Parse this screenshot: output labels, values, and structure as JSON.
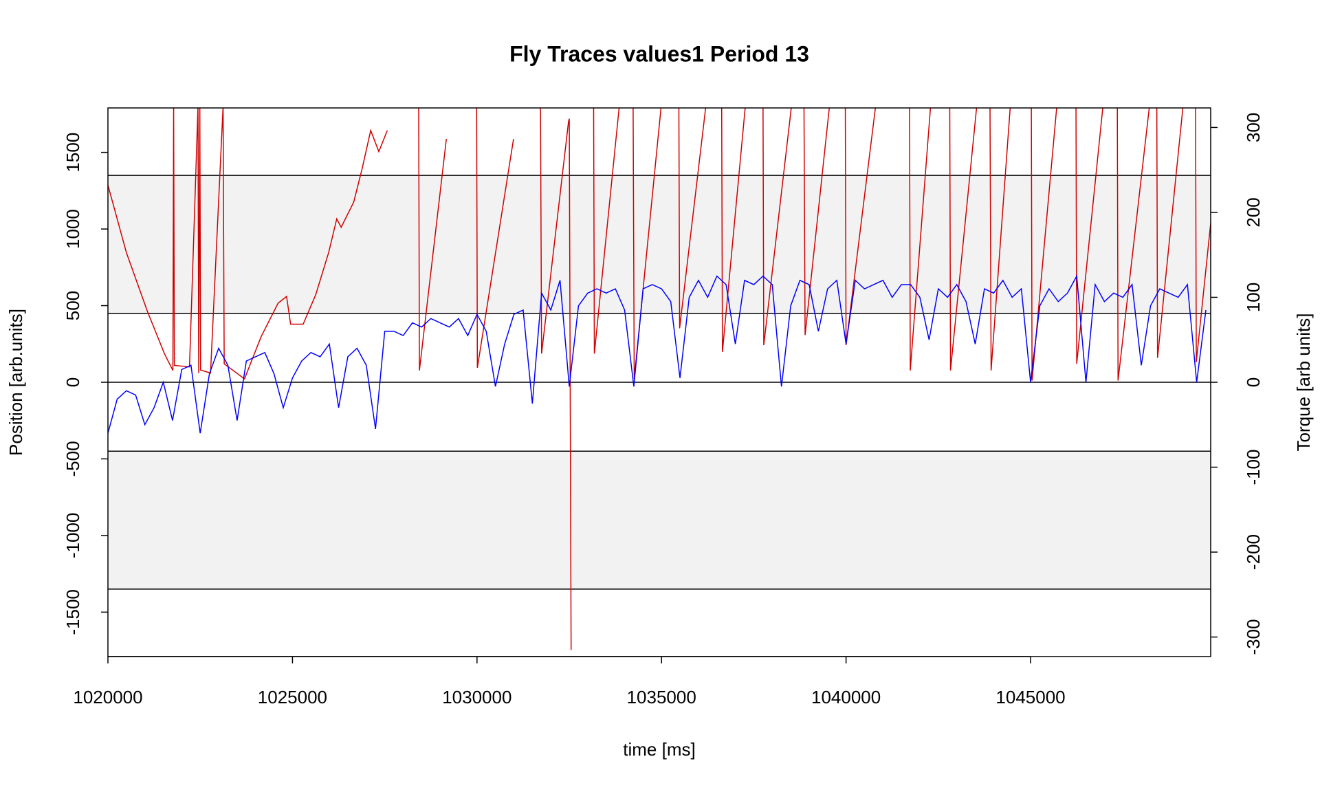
{
  "chart_data": {
    "type": "line",
    "title": "Fly Traces values1 Period 13",
    "xlabel": "time [ms]",
    "ylabel": "Position [arb.units]",
    "y2label": "Torque [arb units]",
    "xlim": [
      1020000,
      1049880
    ],
    "ylim": [
      -1790,
      1790
    ],
    "y2lim": [
      -323,
      323
    ],
    "xticks": [
      1020000,
      1025000,
      1030000,
      1035000,
      1040000,
      1045000
    ],
    "yticks": [
      -1500,
      -1000,
      -500,
      0,
      500,
      1000,
      1500
    ],
    "y2ticks": [
      -300,
      -200,
      -100,
      0,
      100,
      200,
      300
    ],
    "bands": [
      [
        450,
        1350
      ],
      [
        -1350,
        -450
      ]
    ],
    "band_color": "#f2f2f2",
    "hlines": [
      0,
      450,
      -450,
      1350,
      -1350
    ],
    "series": [
      {
        "color": "#d00000",
        "axis": "y",
        "x": [
          1020000,
          1020500,
          1021070,
          1021530,
          1021760,
          1021780,
          1021800,
          1022210,
          1022440,
          1022460,
          1022490,
          1022510,
          1022780,
          1023120,
          1023150,
          1023700,
          1024150,
          1024610,
          1024840,
          1024950,
          1025290,
          1025630,
          1025980,
          1026200,
          1026320,
          1026660,
          1026890,
          1027120,
          1027340,
          1027570,
          1027600,
          1028420,
          1028440,
          1029170,
          1029200,
          1029990,
          1030010,
          1030990,
          1031000,
          1031720,
          1031750,
          1032480,
          1032500,
          1032550,
          1032560,
          1033160,
          1033180,
          1033850,
          1033900,
          1034230,
          1034260,
          1034990,
          1035000,
          1035470,
          1035490,
          1036200,
          1036210,
          1036630,
          1036650,
          1037270,
          1037280,
          1037750,
          1037770,
          1038520,
          1038530,
          1038860,
          1038890,
          1039550,
          1039560,
          1039980,
          1040000,
          1040800,
          1040810,
          1041720,
          1041740,
          1042290,
          1042300,
          1042810,
          1042830,
          1043540,
          1043550,
          1043900,
          1043930,
          1044450,
          1044460,
          1045020,
          1045040,
          1045710,
          1045720,
          1046230,
          1046250,
          1046960,
          1046970,
          1047350,
          1047370,
          1048220,
          1048230,
          1048420,
          1048440,
          1049130,
          1049140,
          1049470,
          1049490,
          1049880
        ],
        "values": [
          1286,
          846,
          462,
          187,
          77,
          1800,
          110,
          100,
          1800,
          60,
          1800,
          80,
          60,
          1800,
          120,
          22,
          297,
          516,
          560,
          379,
          379,
          571,
          846,
          1066,
          1011,
          1176,
          1396,
          1643,
          1505,
          1643,
          null,
          1800,
          77,
          1588,
          null,
          1800,
          94,
          1588,
          null,
          1800,
          187,
          1700,
          1720,
          -1747,
          null,
          1800,
          187,
          1788,
          null,
          1800,
          22,
          1800,
          null,
          1800,
          352,
          1800,
          null,
          1800,
          198,
          1800,
          null,
          1800,
          242,
          1800,
          null,
          1800,
          308,
          1800,
          null,
          1800,
          242,
          1800,
          null,
          1800,
          77,
          1800,
          null,
          1800,
          77,
          1800,
          null,
          1800,
          77,
          1800,
          null,
          1800,
          11,
          1800,
          null,
          1800,
          121,
          1800,
          null,
          1800,
          11,
          1800,
          null,
          1800,
          159,
          1800,
          null,
          1800,
          132,
          1038
        ]
      },
      {
        "color": "#0000ff",
        "axis": "y2",
        "x": [
          1020000,
          1020250,
          1020500,
          1020750,
          1021000,
          1021250,
          1021500,
          1021750,
          1022000,
          1022250,
          1022500,
          1022750,
          1023000,
          1023250,
          1023500,
          1023750,
          1024000,
          1024250,
          1024500,
          1024750,
          1025000,
          1025250,
          1025500,
          1025750,
          1026000,
          1026250,
          1026500,
          1026750,
          1027000,
          1027250,
          1027500,
          1027750,
          1028000,
          1028250,
          1028500,
          1028750,
          1029000,
          1029250,
          1029500,
          1029750,
          1030000,
          1030250,
          1030500,
          1030750,
          1031000,
          1031250,
          1031500,
          1031750,
          1032000,
          1032250,
          1032500,
          1032750,
          1033000,
          1033250,
          1033500,
          1033750,
          1034000,
          1034250,
          1034500,
          1034750,
          1035000,
          1035250,
          1035500,
          1035750,
          1036000,
          1036250,
          1036500,
          1036750,
          1037000,
          1037250,
          1037500,
          1037750,
          1038000,
          1038250,
          1038500,
          1038750,
          1039000,
          1039250,
          1039500,
          1039750,
          1040000,
          1040250,
          1040500,
          1040750,
          1041000,
          1041250,
          1041500,
          1041750,
          1042000,
          1042250,
          1042500,
          1042750,
          1043000,
          1043250,
          1043500,
          1043750,
          1044000,
          1044250,
          1044500,
          1044750,
          1045000,
          1045250,
          1045500,
          1045750,
          1046000,
          1046250,
          1046500,
          1046750,
          1047000,
          1047250,
          1047500,
          1047750,
          1048000,
          1048250,
          1048500,
          1048750,
          1049000,
          1049250,
          1049500,
          1049750
        ],
        "values": [
          -60,
          -20,
          -10,
          -15,
          -50,
          -30,
          0,
          -45,
          15,
          20,
          -60,
          10,
          40,
          20,
          -45,
          25,
          30,
          35,
          10,
          -30,
          5,
          25,
          35,
          30,
          45,
          -30,
          30,
          40,
          20,
          -55,
          60,
          60,
          55,
          70,
          65,
          75,
          70,
          65,
          75,
          55,
          80,
          60,
          -5,
          45,
          80,
          85,
          -25,
          105,
          85,
          120,
          -5,
          90,
          105,
          110,
          105,
          110,
          85,
          -5,
          110,
          115,
          110,
          95,
          5,
          100,
          120,
          100,
          125,
          115,
          45,
          120,
          115,
          125,
          115,
          -5,
          90,
          120,
          115,
          60,
          110,
          120,
          45,
          120,
          110,
          115,
          120,
          100,
          115,
          115,
          100,
          50,
          110,
          100,
          115,
          95,
          45,
          110,
          105,
          120,
          100,
          110,
          0,
          90,
          110,
          95,
          105,
          125,
          0,
          115,
          95,
          105,
          100,
          115,
          20,
          90,
          110,
          105,
          100,
          115,
          0,
          85
        ]
      }
    ]
  }
}
